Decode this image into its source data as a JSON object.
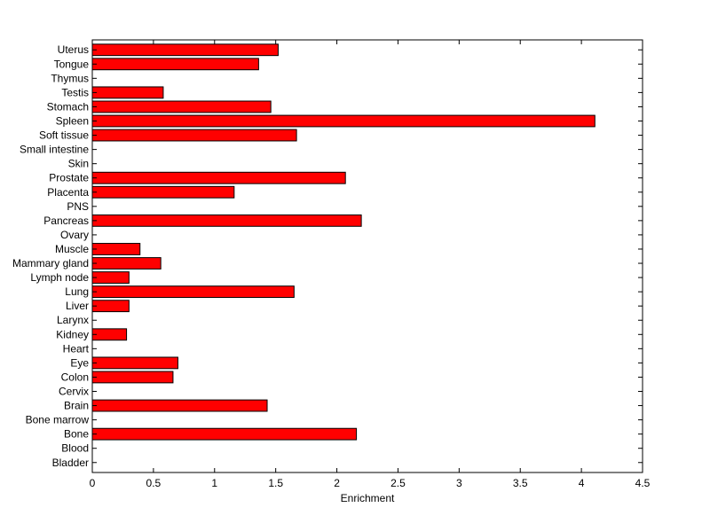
{
  "chart_data": {
    "type": "bar",
    "orientation": "horizontal",
    "title": "",
    "xlabel": "Enrichment",
    "ylabel": "",
    "xlim": [
      0,
      4.5
    ],
    "xticks": [
      0,
      0.5,
      1,
      1.5,
      2,
      2.5,
      3,
      3.5,
      4,
      4.5
    ],
    "xtick_labels": [
      "0",
      "0.5",
      "1",
      "1.5",
      "2",
      "2.5",
      "3",
      "3.5",
      "4",
      "4.5"
    ],
    "grid": false,
    "legend": "none",
    "bar_color": "#ff0000",
    "categories": [
      "Uterus",
      "Tongue",
      "Thymus",
      "Testis",
      "Stomach",
      "Spleen",
      "Soft tissue",
      "Small intestine",
      "Skin",
      "Prostate",
      "Placenta",
      "PNS",
      "Pancreas",
      "Ovary",
      "Muscle",
      "Mammary gland",
      "Lymph node",
      "Lung",
      "Liver",
      "Larynx",
      "Kidney",
      "Heart",
      "Eye",
      "Colon",
      "Cervix",
      "Brain",
      "Bone marrow",
      "Bone",
      "Blood",
      "Bladder"
    ],
    "values": [
      1.52,
      1.36,
      0,
      0.58,
      1.46,
      4.11,
      1.67,
      0,
      0,
      2.07,
      1.16,
      0,
      2.2,
      0,
      0.39,
      0.56,
      0.3,
      1.65,
      0.3,
      0,
      0.28,
      0,
      0.7,
      0.66,
      0,
      1.43,
      0,
      2.16,
      0,
      0
    ]
  }
}
